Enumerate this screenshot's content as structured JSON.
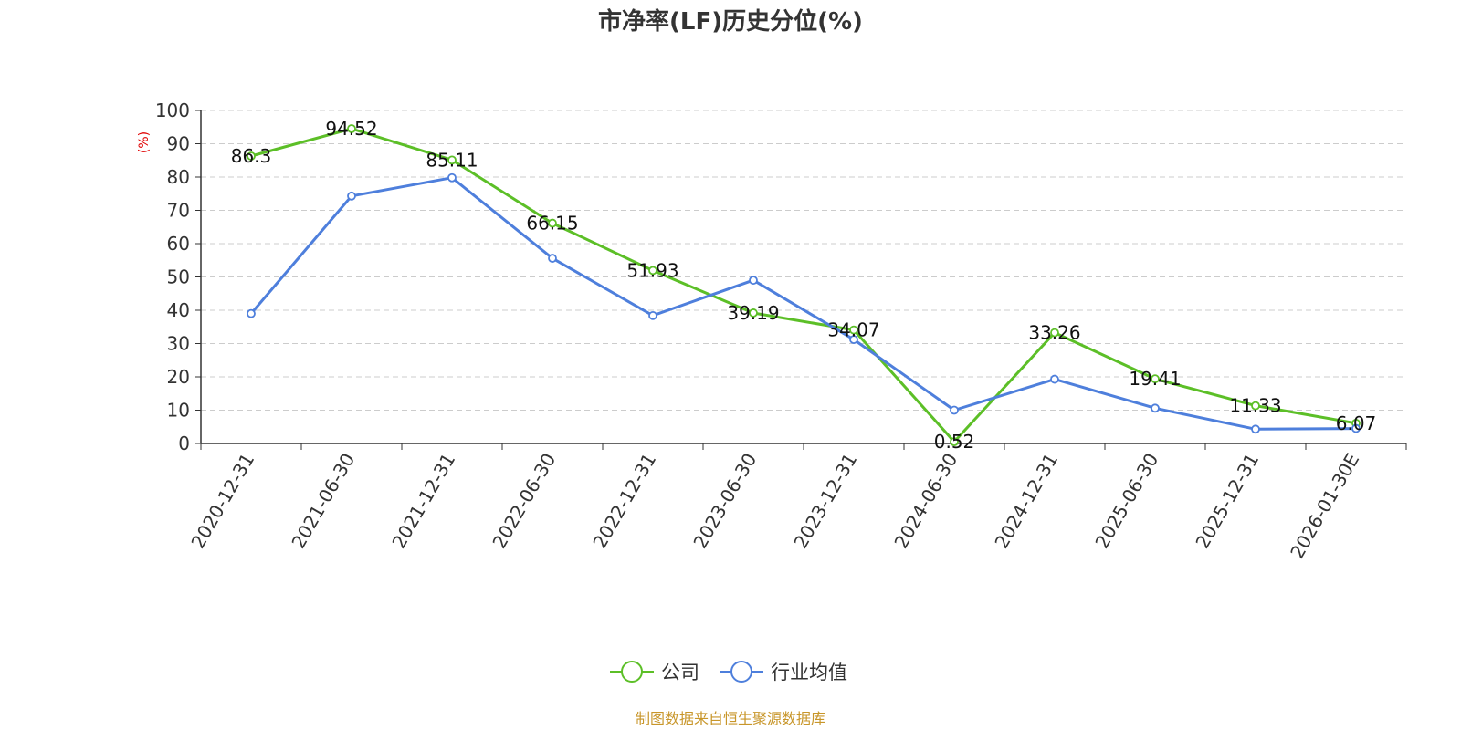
{
  "chart_data": {
    "type": "line",
    "title": "市净率(LF)历史分位(%)",
    "ylabel": "(%)",
    "ylim": [
      0,
      100
    ],
    "yticks": [
      0,
      10,
      20,
      30,
      40,
      50,
      60,
      70,
      80,
      90,
      100
    ],
    "grid": true,
    "legend_position": "bottom",
    "categories": [
      "2020-12-31",
      "2021-06-30",
      "2021-12-31",
      "2022-06-30",
      "2022-12-31",
      "2023-06-30",
      "2023-12-31",
      "2024-06-30",
      "2024-12-31",
      "2025-06-30",
      "2025-12-31",
      "2026-01-30E"
    ],
    "series": [
      {
        "name": "公司",
        "color": "#5cbf27",
        "show_labels": true,
        "values": [
          86.3,
          94.52,
          85.11,
          66.15,
          51.93,
          39.19,
          34.07,
          0.52,
          33.26,
          19.41,
          11.33,
          6.07
        ]
      },
      {
        "name": "行业均值",
        "color": "#4e7fdc",
        "show_labels": false,
        "values": [
          39,
          74.3,
          79.8,
          55.6,
          38.4,
          49,
          31.2,
          10,
          19.3,
          10.6,
          4.3,
          4.5
        ]
      }
    ],
    "source": "制图数据来自恒生聚源数据库"
  }
}
